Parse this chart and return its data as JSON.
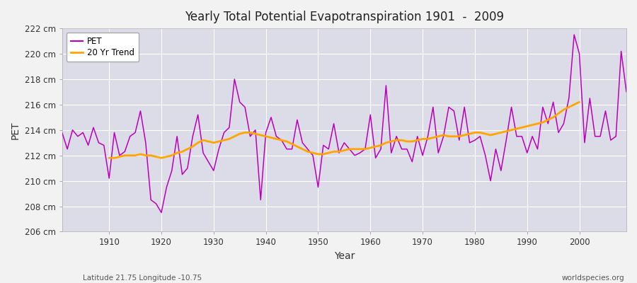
{
  "title": "Yearly Total Potential Evapotranspiration 1901  -  2009",
  "xlabel": "Year",
  "ylabel": "PET",
  "subtitle_left": "Latitude 21.75 Longitude -10.75",
  "subtitle_right": "worldspecies.org",
  "pet_color": "#BB00BB",
  "trend_color": "#FFA500",
  "bg_color": "#DCDCE8",
  "fig_color": "#F2F2F2",
  "ylim": [
    206,
    222
  ],
  "yticks": [
    206,
    208,
    210,
    212,
    214,
    216,
    218,
    220,
    222
  ],
  "ytick_labels": [
    "206 cm",
    "208 cm",
    "210 cm",
    "212 cm",
    "214 cm",
    "216 cm",
    "218 cm",
    "220 cm",
    "222 cm"
  ],
  "xticks": [
    1910,
    1920,
    1930,
    1940,
    1950,
    1960,
    1970,
    1980,
    1990,
    2000
  ],
  "years": [
    1901,
    1902,
    1903,
    1904,
    1905,
    1906,
    1907,
    1908,
    1909,
    1910,
    1911,
    1912,
    1913,
    1914,
    1915,
    1916,
    1917,
    1918,
    1919,
    1920,
    1921,
    1922,
    1923,
    1924,
    1925,
    1926,
    1927,
    1928,
    1929,
    1930,
    1931,
    1932,
    1933,
    1934,
    1935,
    1936,
    1937,
    1938,
    1939,
    1940,
    1941,
    1942,
    1943,
    1944,
    1945,
    1946,
    1947,
    1948,
    1949,
    1950,
    1951,
    1952,
    1953,
    1954,
    1955,
    1956,
    1957,
    1958,
    1959,
    1960,
    1961,
    1962,
    1963,
    1964,
    1965,
    1966,
    1967,
    1968,
    1969,
    1970,
    1971,
    1972,
    1973,
    1974,
    1975,
    1976,
    1977,
    1978,
    1979,
    1980,
    1981,
    1982,
    1983,
    1984,
    1985,
    1986,
    1987,
    1988,
    1989,
    1990,
    1991,
    1992,
    1993,
    1994,
    1995,
    1996,
    1997,
    1998,
    1999,
    2000,
    2001,
    2002,
    2003,
    2004,
    2005,
    2006,
    2007,
    2008,
    2009
  ],
  "pet_values": [
    213.8,
    212.5,
    214.0,
    213.5,
    213.8,
    212.8,
    214.2,
    213.0,
    212.8,
    210.2,
    213.8,
    212.0,
    212.3,
    213.5,
    213.8,
    215.5,
    213.0,
    208.5,
    208.2,
    207.5,
    209.5,
    210.8,
    213.5,
    210.5,
    211.0,
    213.5,
    215.2,
    212.2,
    211.5,
    210.8,
    212.5,
    213.8,
    214.2,
    218.0,
    216.2,
    215.8,
    213.5,
    214.0,
    208.5,
    213.8,
    215.0,
    213.5,
    213.2,
    212.5,
    212.5,
    214.8,
    213.0,
    212.5,
    212.0,
    209.5,
    212.8,
    212.5,
    214.5,
    212.2,
    213.0,
    212.5,
    212.0,
    212.2,
    212.5,
    215.2,
    211.8,
    212.5,
    217.5,
    212.2,
    213.5,
    212.5,
    212.5,
    211.5,
    213.5,
    212.0,
    213.5,
    215.8,
    212.2,
    213.5,
    215.8,
    215.5,
    213.2,
    215.8,
    213.0,
    213.2,
    213.5,
    212.0,
    210.0,
    212.5,
    210.8,
    213.2,
    215.8,
    213.5,
    213.5,
    212.2,
    213.5,
    212.5,
    215.8,
    214.5,
    216.2,
    213.8,
    214.5,
    216.5,
    221.5,
    220.0,
    213.0,
    216.5,
    213.5,
    213.5,
    215.5,
    213.2,
    213.5,
    220.2,
    217.0
  ],
  "trend_values": [
    null,
    null,
    null,
    null,
    null,
    null,
    null,
    null,
    null,
    211.8,
    211.8,
    211.9,
    212.0,
    212.0,
    212.0,
    212.1,
    212.0,
    212.0,
    211.9,
    211.8,
    211.9,
    212.0,
    212.2,
    212.3,
    212.5,
    212.7,
    213.0,
    213.2,
    213.1,
    213.0,
    213.1,
    213.2,
    213.3,
    213.5,
    213.7,
    213.8,
    213.8,
    213.7,
    213.6,
    213.5,
    213.4,
    213.3,
    213.2,
    213.1,
    212.9,
    212.7,
    212.5,
    212.3,
    212.2,
    212.1,
    212.1,
    212.2,
    212.3,
    212.3,
    212.4,
    212.5,
    212.5,
    212.5,
    212.5,
    212.6,
    212.7,
    212.8,
    213.0,
    213.1,
    213.2,
    213.2,
    213.1,
    213.1,
    213.2,
    213.3,
    213.3,
    213.4,
    213.5,
    213.6,
    213.5,
    213.5,
    213.5,
    213.6,
    213.7,
    213.8,
    213.8,
    213.7,
    213.6,
    213.7,
    213.8,
    213.9,
    214.0,
    214.1,
    214.2,
    214.3,
    214.4,
    214.5,
    214.6,
    214.8,
    215.0,
    215.3,
    215.6,
    215.8,
    216.0,
    216.2,
    null,
    null,
    null,
    null,
    null,
    null,
    null,
    null,
    null
  ],
  "legend_labels": [
    "PET",
    "20 Yr Trend"
  ]
}
